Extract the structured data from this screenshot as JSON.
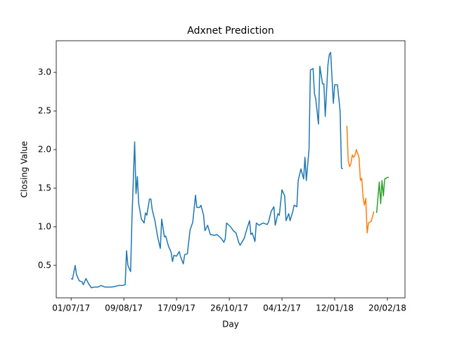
{
  "chart_data": {
    "type": "line",
    "title": "Adxnet Prediction",
    "x_label": "Day",
    "y_label": "Closing Value",
    "xlim": [
      "2017-06-20",
      "2018-03-05"
    ],
    "ylim": [
      0.08,
      3.41
    ],
    "xticks": [
      {
        "value": "2017-07-01",
        "label": "01/07/17"
      },
      {
        "value": "2017-08-09",
        "label": "09/08/17"
      },
      {
        "value": "2017-09-17",
        "label": "17/09/17"
      },
      {
        "value": "2017-10-26",
        "label": "26/10/17"
      },
      {
        "value": "2017-12-04",
        "label": "04/12/17"
      },
      {
        "value": "2018-01-12",
        "label": "12/01/18"
      },
      {
        "value": "2018-02-20",
        "label": "20/02/18"
      }
    ],
    "yticks": [
      0.5,
      {
        "value": 1.0,
        "label": "1.0"
      },
      1.5,
      {
        "value": 2.0,
        "label": "2.0"
      },
      2.5,
      {
        "value": 3.0,
        "label": "3.0"
      }
    ],
    "series": [
      {
        "color": "#1f77b4",
        "x": [
          "2017-07-01",
          "2017-07-02",
          "2017-07-04",
          "2017-07-05",
          "2017-07-07",
          "2017-07-09",
          "2017-07-10",
          "2017-07-12",
          "2017-07-14",
          "2017-07-16",
          "2017-07-18",
          "2017-07-21",
          "2017-07-23",
          "2017-07-26",
          "2017-07-29",
          "2017-07-31",
          "2017-08-03",
          "2017-08-05",
          "2017-08-08",
          "2017-08-10",
          "2017-08-11",
          "2017-08-12",
          "2017-08-14",
          "2017-08-15",
          "2017-08-17",
          "2017-08-18",
          "2017-08-19",
          "2017-08-20",
          "2017-08-22",
          "2017-08-24",
          "2017-08-25",
          "2017-08-26",
          "2017-08-28",
          "2017-08-29",
          "2017-08-30",
          "2017-09-01",
          "2017-09-03",
          "2017-09-05",
          "2017-09-06",
          "2017-09-08",
          "2017-09-09",
          "2017-09-11",
          "2017-09-13",
          "2017-09-14",
          "2017-09-15",
          "2017-09-17",
          "2017-09-19",
          "2017-09-20",
          "2017-09-22",
          "2017-09-23",
          "2017-09-25",
          "2017-09-27",
          "2017-09-29",
          "2017-10-01",
          "2017-10-02",
          "2017-10-04",
          "2017-10-05",
          "2017-10-07",
          "2017-10-08",
          "2017-10-10",
          "2017-10-12",
          "2017-10-15",
          "2017-10-17",
          "2017-10-20",
          "2017-10-22",
          "2017-10-23",
          "2017-10-24",
          "2017-10-27",
          "2017-10-29",
          "2017-10-31",
          "2017-11-02",
          "2017-11-03",
          "2017-11-05",
          "2017-11-06",
          "2017-11-08",
          "2017-11-10",
          "2017-11-11",
          "2017-11-12",
          "2017-11-14",
          "2017-11-15",
          "2017-11-17",
          "2017-11-20",
          "2017-11-23",
          "2017-11-24",
          "2017-11-26",
          "2017-11-28",
          "2017-11-29",
          "2017-12-01",
          "2017-12-02",
          "2017-12-04",
          "2017-12-06",
          "2017-12-07",
          "2017-12-09",
          "2017-12-10",
          "2017-12-12",
          "2017-12-13",
          "2017-12-15",
          "2017-12-16",
          "2017-12-18",
          "2017-12-20",
          "2017-12-21",
          "2017-12-22",
          "2017-12-24",
          "2017-12-25",
          "2017-12-27",
          "2017-12-28",
          "2017-12-29",
          "2017-12-31",
          "2018-01-01",
          "2018-01-03",
          "2018-01-04",
          "2018-01-05",
          "2018-01-07",
          "2018-01-08",
          "2018-01-09",
          "2018-01-11",
          "2018-01-12",
          "2018-01-14",
          "2018-01-16",
          "2018-01-17",
          "2018-01-18"
        ],
        "values": [
          0.33,
          0.32,
          0.5,
          0.38,
          0.3,
          0.29,
          0.25,
          0.33,
          0.26,
          0.21,
          0.22,
          0.22,
          0.24,
          0.22,
          0.22,
          0.22,
          0.23,
          0.24,
          0.24,
          0.25,
          0.69,
          0.5,
          0.42,
          1.1,
          2.1,
          1.43,
          1.65,
          1.3,
          1.1,
          1.05,
          1.18,
          1.15,
          1.36,
          1.36,
          1.22,
          1.08,
          0.87,
          0.72,
          1.1,
          0.87,
          0.88,
          0.75,
          0.67,
          0.55,
          0.63,
          0.62,
          0.68,
          0.61,
          0.52,
          0.64,
          0.65,
          0.96,
          1.06,
          1.41,
          1.25,
          1.25,
          1.28,
          1.15,
          0.95,
          1.02,
          0.9,
          0.89,
          0.9,
          0.85,
          0.8,
          0.84,
          1.05,
          1.0,
          0.95,
          0.92,
          0.8,
          0.76,
          0.82,
          0.85,
          0.97,
          1.08,
          0.9,
          0.92,
          0.81,
          1.05,
          1.02,
          1.05,
          1.03,
          1.06,
          1.2,
          1.26,
          1.02,
          1.17,
          1.15,
          1.48,
          1.4,
          1.08,
          1.17,
          1.08,
          1.2,
          1.28,
          1.26,
          1.6,
          1.75,
          1.62,
          1.9,
          1.6,
          2.0,
          3.03,
          3.05,
          2.73,
          2.65,
          2.33,
          3.08,
          2.85,
          2.85,
          2.43,
          3.1,
          3.23,
          3.26,
          2.6,
          2.84,
          2.84,
          2.5,
          1.76,
          1.75
        ]
      },
      {
        "color": "#ff7f0e",
        "x": [
          "2018-01-21",
          "2018-01-22",
          "2018-01-23",
          "2018-01-24",
          "2018-01-25",
          "2018-01-26",
          "2018-01-27",
          "2018-01-28",
          "2018-01-30",
          "2018-01-31",
          "2018-02-01",
          "2018-02-02",
          "2018-02-03",
          "2018-02-04",
          "2018-02-05",
          "2018-02-06",
          "2018-02-08",
          "2018-02-10"
        ],
        "values": [
          2.31,
          1.85,
          1.78,
          1.82,
          1.93,
          1.9,
          1.93,
          2.0,
          1.9,
          1.6,
          1.63,
          1.38,
          1.28,
          1.37,
          0.92,
          1.05,
          1.07,
          1.2
        ]
      },
      {
        "color": "#2ca02c",
        "x": [
          "2018-02-12",
          "2018-02-13",
          "2018-02-14",
          "2018-02-15",
          "2018-02-16",
          "2018-02-17",
          "2018-02-18",
          "2018-02-20",
          "2018-02-21"
        ],
        "values": [
          1.18,
          1.38,
          1.58,
          1.3,
          1.6,
          1.4,
          1.62,
          1.64,
          1.64
        ]
      }
    ]
  }
}
